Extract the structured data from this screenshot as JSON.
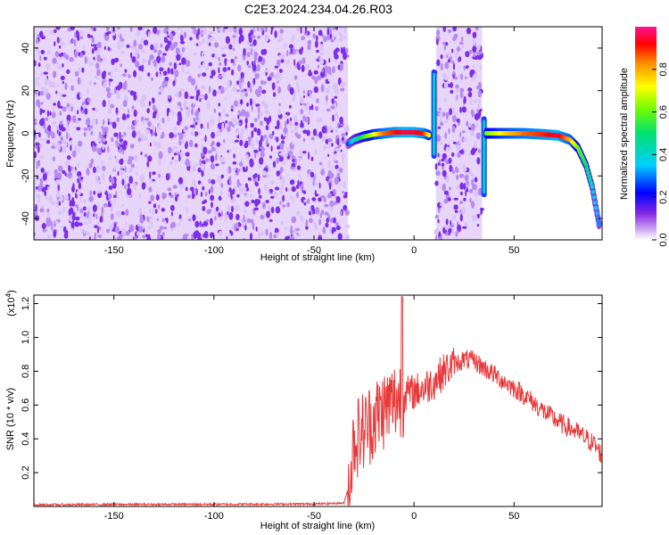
{
  "title": "C2E3.2024.234.04.26.R03",
  "chart_data": [
    {
      "type": "heatmap",
      "xlabel": "Height of straight line (km)",
      "ylabel": "Frequency (Hz)",
      "xlim": [
        -190,
        94
      ],
      "ylim": [
        -50,
        50
      ],
      "x_ticks": [
        "-150",
        "-100",
        "-50",
        "0",
        "50"
      ],
      "x_tick_values": [
        -150,
        -100,
        -50,
        0,
        50
      ],
      "y_ticks": [
        "-40",
        "-20",
        "0",
        "20",
        "40"
      ],
      "y_tick_values": [
        -40,
        -20,
        0,
        20,
        40
      ],
      "colorbar": {
        "label": "Normalized spectral amplitude",
        "ticks": [
          "0.0",
          "0.2",
          "0.4",
          "0.6",
          "0.8"
        ],
        "tick_values": [
          0.0,
          0.2,
          0.4,
          0.6,
          0.8
        ],
        "range": [
          0,
          1
        ]
      },
      "noise_regions_km": [
        [
          -190,
          -33
        ],
        [
          11,
          34
        ]
      ],
      "ridge": [
        {
          "x": -33,
          "y": -5,
          "amp": 0.25
        },
        {
          "x": -30,
          "y": -3,
          "amp": 0.4
        },
        {
          "x": -25,
          "y": -1.5,
          "amp": 0.55
        },
        {
          "x": -20,
          "y": -0.5,
          "amp": 0.7
        },
        {
          "x": -15,
          "y": 0,
          "amp": 0.85
        },
        {
          "x": -10,
          "y": 0.5,
          "amp": 0.9
        },
        {
          "x": -5,
          "y": 0.5,
          "amp": 0.95
        },
        {
          "x": 0,
          "y": 0.5,
          "amp": 0.95
        },
        {
          "x": 5,
          "y": 0,
          "amp": 0.9
        },
        {
          "x": 8,
          "y": -1,
          "amp": 0.7
        },
        {
          "x": 36,
          "y": 0,
          "amp": 0.6
        },
        {
          "x": 45,
          "y": 0,
          "amp": 0.75
        },
        {
          "x": 55,
          "y": 0,
          "amp": 0.85
        },
        {
          "x": 65,
          "y": -0.5,
          "amp": 0.9
        },
        {
          "x": 72,
          "y": -1,
          "amp": 0.95
        },
        {
          "x": 78,
          "y": -3,
          "amp": 0.8
        },
        {
          "x": 82,
          "y": -7,
          "amp": 0.6
        },
        {
          "x": 86,
          "y": -15,
          "amp": 0.5
        },
        {
          "x": 89,
          "y": -25,
          "amp": 0.4
        },
        {
          "x": 91,
          "y": -35,
          "amp": 0.35
        },
        {
          "x": 93,
          "y": -45,
          "amp": 0.3
        }
      ],
      "spikes": [
        {
          "x": 10,
          "y_range": [
            -12,
            30
          ],
          "amp": 0.45
        },
        {
          "x": 35,
          "y_range": [
            -30,
            8
          ],
          "amp": 0.4
        }
      ]
    },
    {
      "type": "line",
      "xlabel": "Height of straight line (km)",
      "ylabel": "SNR (10 * v/v)",
      "y_scale_label": "(x10",
      "y_scale_exponent": "4",
      "y_scale_suffix": ")",
      "xlim": [
        -190,
        94
      ],
      "ylim": [
        0,
        1.25
      ],
      "x_ticks": [
        "-150",
        "-100",
        "-50",
        "0",
        "50"
      ],
      "x_tick_values": [
        -150,
        -100,
        -50,
        0,
        50
      ],
      "y_ticks": [
        "0.2",
        "0.4",
        "0.6",
        "0.8",
        "1.0",
        "1.2"
      ],
      "y_tick_values": [
        0.2,
        0.4,
        0.6,
        0.8,
        1.0,
        1.2
      ],
      "series": [
        {
          "color": "#e8393a",
          "x": [
            -190,
            -150,
            -100,
            -50,
            -35,
            -32,
            -30,
            -25,
            -20,
            -15,
            -10,
            -5,
            0,
            5,
            10,
            15,
            20,
            25,
            30,
            35,
            40,
            45,
            50,
            55,
            60,
            65,
            70,
            75,
            80,
            85,
            90,
            94
          ],
          "y": [
            0.01,
            0.012,
            0.013,
            0.015,
            0.02,
            0.15,
            0.4,
            0.45,
            0.52,
            0.58,
            0.62,
            0.66,
            0.68,
            0.7,
            0.74,
            0.8,
            0.84,
            0.87,
            0.86,
            0.82,
            0.78,
            0.74,
            0.7,
            0.66,
            0.61,
            0.56,
            0.52,
            0.48,
            0.45,
            0.41,
            0.37,
            0.3
          ]
        }
      ]
    }
  ]
}
